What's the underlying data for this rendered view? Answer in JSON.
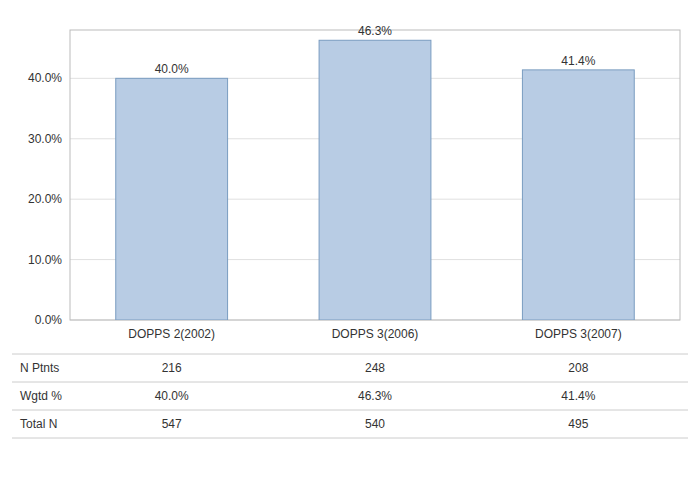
{
  "chart_data": {
    "type": "bar",
    "categories": [
      "DOPPS 2(2002)",
      "DOPPS 3(2006)",
      "DOPPS 3(2007)"
    ],
    "values": [
      40.0,
      46.3,
      41.4
    ],
    "value_labels": [
      "40.0%",
      "46.3%",
      "41.4%"
    ],
    "data_labels": true,
    "color": "#b8cce4",
    "ylim": [
      0,
      48
    ],
    "yticks": [
      {
        "value": 0,
        "label": "0.0%"
      },
      {
        "value": 10,
        "label": "10.0%"
      },
      {
        "value": 20,
        "label": "20.0%"
      },
      {
        "value": 30,
        "label": "30.0%"
      },
      {
        "value": 40,
        "label": "40.0%"
      }
    ],
    "grid": true,
    "table": {
      "row_labels": [
        "N Ptnts",
        "Wgtd %",
        "Total N"
      ],
      "cells": [
        [
          "216",
          "248",
          "208"
        ],
        [
          "40.0%",
          "46.3%",
          "41.4%"
        ],
        [
          "547",
          "540",
          "495"
        ]
      ]
    }
  }
}
